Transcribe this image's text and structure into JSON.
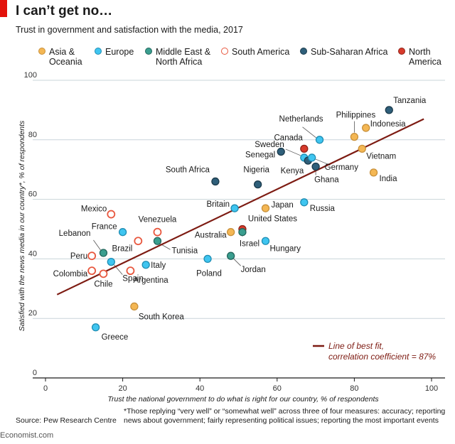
{
  "header": {
    "title": "I can’t get no…",
    "subtitle": "Trust in government and satisfaction with the media, 2017"
  },
  "colors": {
    "accent": "#e3120b",
    "trendline": "#7d1b12",
    "asia": "#f4b754",
    "europe": "#3fc5f0",
    "mideast": "#3a9e8f",
    "southamerica": "#e8573e",
    "africa": "#2f5f7a",
    "northamerica": "#d73a2b"
  },
  "legend": [
    {
      "key": "asia",
      "lines": [
        "Asia &",
        "Oceania"
      ],
      "hollow": false
    },
    {
      "key": "europe",
      "lines": [
        "Europe"
      ],
      "hollow": false
    },
    {
      "key": "mideast",
      "lines": [
        "Middle East &",
        "North Africa"
      ],
      "hollow": false
    },
    {
      "key": "southamerica",
      "lines": [
        "South America"
      ],
      "hollow": true
    },
    {
      "key": "africa",
      "lines": [
        "Sub-Saharan Africa"
      ],
      "hollow": false
    },
    {
      "key": "northamerica",
      "lines": [
        "North",
        "America"
      ],
      "hollow": false
    }
  ],
  "chart_data": {
    "type": "scatter",
    "xlabel": "Trust the national government to do what is right for our country, % of respondents",
    "ylabel": "Satisfied with the news media in our country*, % of respondents",
    "xlim": [
      0,
      100
    ],
    "ylim": [
      0,
      100
    ],
    "xticks": [
      0,
      20,
      40,
      60,
      80,
      100
    ],
    "yticks": [
      0,
      20,
      40,
      60,
      80,
      100
    ],
    "grid": "horizontal",
    "legend_position": "top",
    "trendline": {
      "label_lines": [
        "Line of best fit,",
        "correlation coefficient = 87%"
      ],
      "from": [
        3,
        28
      ],
      "to": [
        98,
        87
      ]
    },
    "points": [
      {
        "name": "Tanzania",
        "region": "africa",
        "x": 89,
        "y": 90
      },
      {
        "name": "Philippines",
        "region": "asia",
        "x": 80,
        "y": 81
      },
      {
        "name": "Indonesia",
        "region": "asia",
        "x": 83,
        "y": 84
      },
      {
        "name": "Vietnam",
        "region": "asia",
        "x": 82,
        "y": 77
      },
      {
        "name": "India",
        "region": "asia",
        "x": 85,
        "y": 69
      },
      {
        "name": "Netherlands",
        "region": "europe",
        "x": 71,
        "y": 80
      },
      {
        "name": "Canada",
        "region": "northamerica",
        "x": 67,
        "y": 77
      },
      {
        "name": "Sweden",
        "region": "europe",
        "x": 67,
        "y": 74
      },
      {
        "name": "Senegal",
        "region": "africa",
        "x": 61,
        "y": 76
      },
      {
        "name": "Kenya",
        "region": "africa",
        "x": 68,
        "y": 73
      },
      {
        "name": "Germany",
        "region": "europe",
        "x": 69,
        "y": 74
      },
      {
        "name": "Ghana",
        "region": "africa",
        "x": 70,
        "y": 71
      },
      {
        "name": "South Africa",
        "region": "africa",
        "x": 44,
        "y": 66
      },
      {
        "name": "Nigeria",
        "region": "africa",
        "x": 55,
        "y": 65
      },
      {
        "name": "Britain",
        "region": "europe",
        "x": 49,
        "y": 57
      },
      {
        "name": "Japan",
        "region": "asia",
        "x": 57,
        "y": 57
      },
      {
        "name": "Russia",
        "region": "europe",
        "x": 67,
        "y": 59
      },
      {
        "name": "United States",
        "region": "northamerica",
        "x": 51,
        "y": 50
      },
      {
        "name": "Australia",
        "region": "asia",
        "x": 48,
        "y": 49
      },
      {
        "name": "Israel",
        "region": "mideast",
        "x": 51,
        "y": 49
      },
      {
        "name": "Hungary",
        "region": "europe",
        "x": 57,
        "y": 46
      },
      {
        "name": "Jordan",
        "region": "mideast",
        "x": 48,
        "y": 41
      },
      {
        "name": "Poland",
        "region": "europe",
        "x": 42,
        "y": 40
      },
      {
        "name": "Mexico",
        "region": "southamerica",
        "x": 17,
        "y": 55
      },
      {
        "name": "France",
        "region": "europe",
        "x": 20,
        "y": 49
      },
      {
        "name": "Venezuela",
        "region": "southamerica",
        "x": 29,
        "y": 49
      },
      {
        "name": "Tunisia",
        "region": "mideast",
        "x": 29,
        "y": 46
      },
      {
        "name": "Brazil",
        "region": "southamerica",
        "x": 24,
        "y": 46
      },
      {
        "name": "Lebanon",
        "region": "mideast",
        "x": 15,
        "y": 42
      },
      {
        "name": "Peru",
        "region": "southamerica",
        "x": 12,
        "y": 41
      },
      {
        "name": "Italy",
        "region": "europe",
        "x": 26,
        "y": 38
      },
      {
        "name": "Colombia",
        "region": "southamerica",
        "x": 12,
        "y": 36
      },
      {
        "name": "Spain",
        "region": "europe",
        "x": 17,
        "y": 39
      },
      {
        "name": "Chile",
        "region": "southamerica",
        "x": 15,
        "y": 35
      },
      {
        "name": "Argentina",
        "region": "southamerica",
        "x": 22,
        "y": 36
      },
      {
        "name": "South Korea",
        "region": "asia",
        "x": 23,
        "y": 24
      },
      {
        "name": "Greece",
        "region": "europe",
        "x": 13,
        "y": 17
      }
    ]
  },
  "footnote": "*Those replying “very well” or “somewhat well” across three of four measures: accuracy; reporting news about government; fairly representing political issues; reporting the most important events",
  "source": "Source: Pew Research Centre",
  "brand": "Economist.com"
}
